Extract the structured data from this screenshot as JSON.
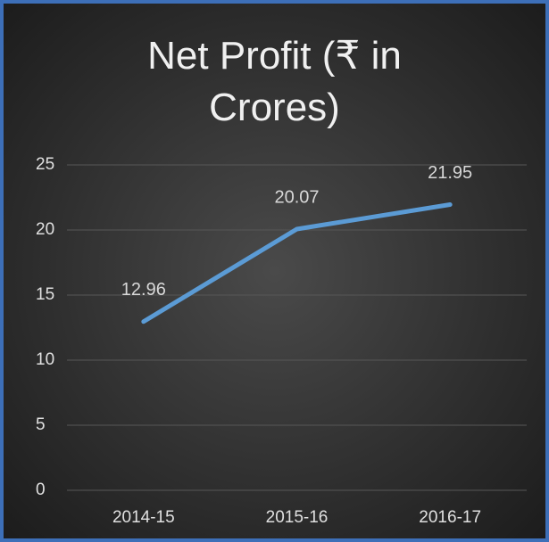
{
  "chart_data": {
    "type": "line",
    "title": "Net Profit (₹ in Crores)",
    "categories": [
      "2014-15",
      "2015-16",
      "2016-17"
    ],
    "values": [
      12.96,
      20.07,
      21.95
    ],
    "color": "#5b9bd5",
    "ylim": [
      0,
      25
    ],
    "yticks": [
      0,
      5,
      10,
      15,
      20,
      25
    ],
    "grid": true
  }
}
